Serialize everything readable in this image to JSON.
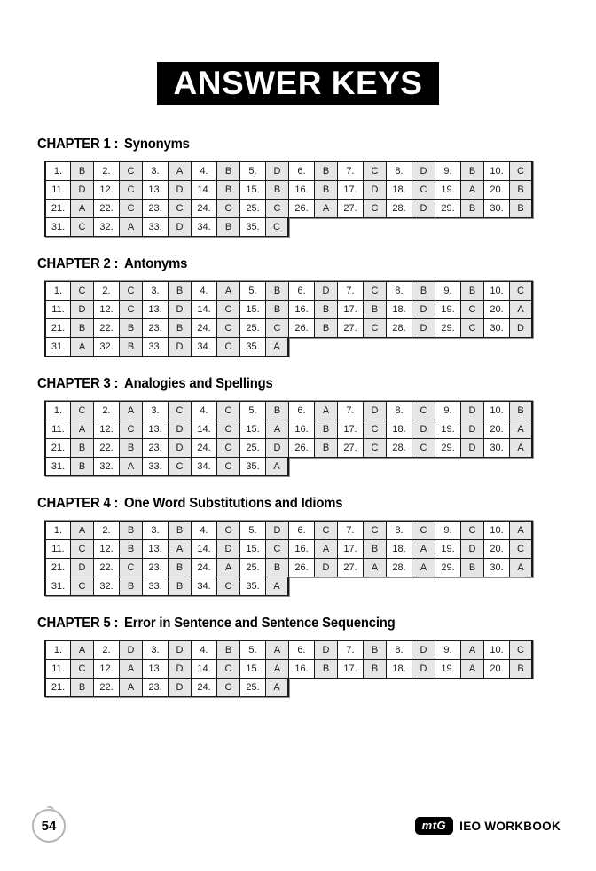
{
  "page": {
    "title": "ANSWER KEYS",
    "page_number": "54",
    "brand_logo": "mtG",
    "brand_text": "IEO WORKBOOK"
  },
  "chapters": [
    {
      "label": "CHAPTER 1 :",
      "name": "Synonyms",
      "answers": [
        "B",
        "C",
        "A",
        "B",
        "D",
        "B",
        "C",
        "D",
        "B",
        "C",
        "D",
        "C",
        "D",
        "B",
        "B",
        "B",
        "D",
        "C",
        "A",
        "B",
        "A",
        "C",
        "C",
        "C",
        "C",
        "A",
        "C",
        "D",
        "B",
        "B",
        "C",
        "A",
        "D",
        "B",
        "C"
      ]
    },
    {
      "label": "CHAPTER 2 :",
      "name": "Antonyms",
      "answers": [
        "C",
        "C",
        "B",
        "A",
        "B",
        "D",
        "C",
        "B",
        "B",
        "C",
        "D",
        "C",
        "D",
        "C",
        "B",
        "B",
        "B",
        "D",
        "C",
        "A",
        "B",
        "B",
        "B",
        "C",
        "C",
        "B",
        "C",
        "D",
        "C",
        "D",
        "A",
        "B",
        "D",
        "C",
        "A"
      ]
    },
    {
      "label": "CHAPTER 3 :",
      "name": "Analogies and Spellings",
      "answers": [
        "C",
        "A",
        "C",
        "C",
        "B",
        "A",
        "D",
        "C",
        "D",
        "B",
        "A",
        "C",
        "D",
        "C",
        "A",
        "B",
        "C",
        "D",
        "D",
        "A",
        "B",
        "B",
        "D",
        "C",
        "D",
        "B",
        "C",
        "C",
        "D",
        "A",
        "B",
        "A",
        "C",
        "C",
        "A"
      ]
    },
    {
      "label": "CHAPTER 4 :",
      "name": "One Word Substitutions and Idioms",
      "answers": [
        "A",
        "B",
        "B",
        "C",
        "D",
        "C",
        "C",
        "C",
        "C",
        "A",
        "C",
        "B",
        "A",
        "D",
        "C",
        "A",
        "B",
        "A",
        "D",
        "C",
        "D",
        "C",
        "B",
        "A",
        "B",
        "D",
        "A",
        "A",
        "B",
        "A",
        "C",
        "B",
        "B",
        "C",
        "A"
      ]
    },
    {
      "label": "CHAPTER 5 :",
      "name": "Error in Sentence and Sentence Sequencing",
      "answers": [
        "A",
        "D",
        "D",
        "B",
        "A",
        "D",
        "B",
        "D",
        "A",
        "C",
        "C",
        "A",
        "D",
        "C",
        "A",
        "B",
        "B",
        "D",
        "A",
        "B",
        "B",
        "A",
        "D",
        "C",
        "A"
      ]
    }
  ]
}
